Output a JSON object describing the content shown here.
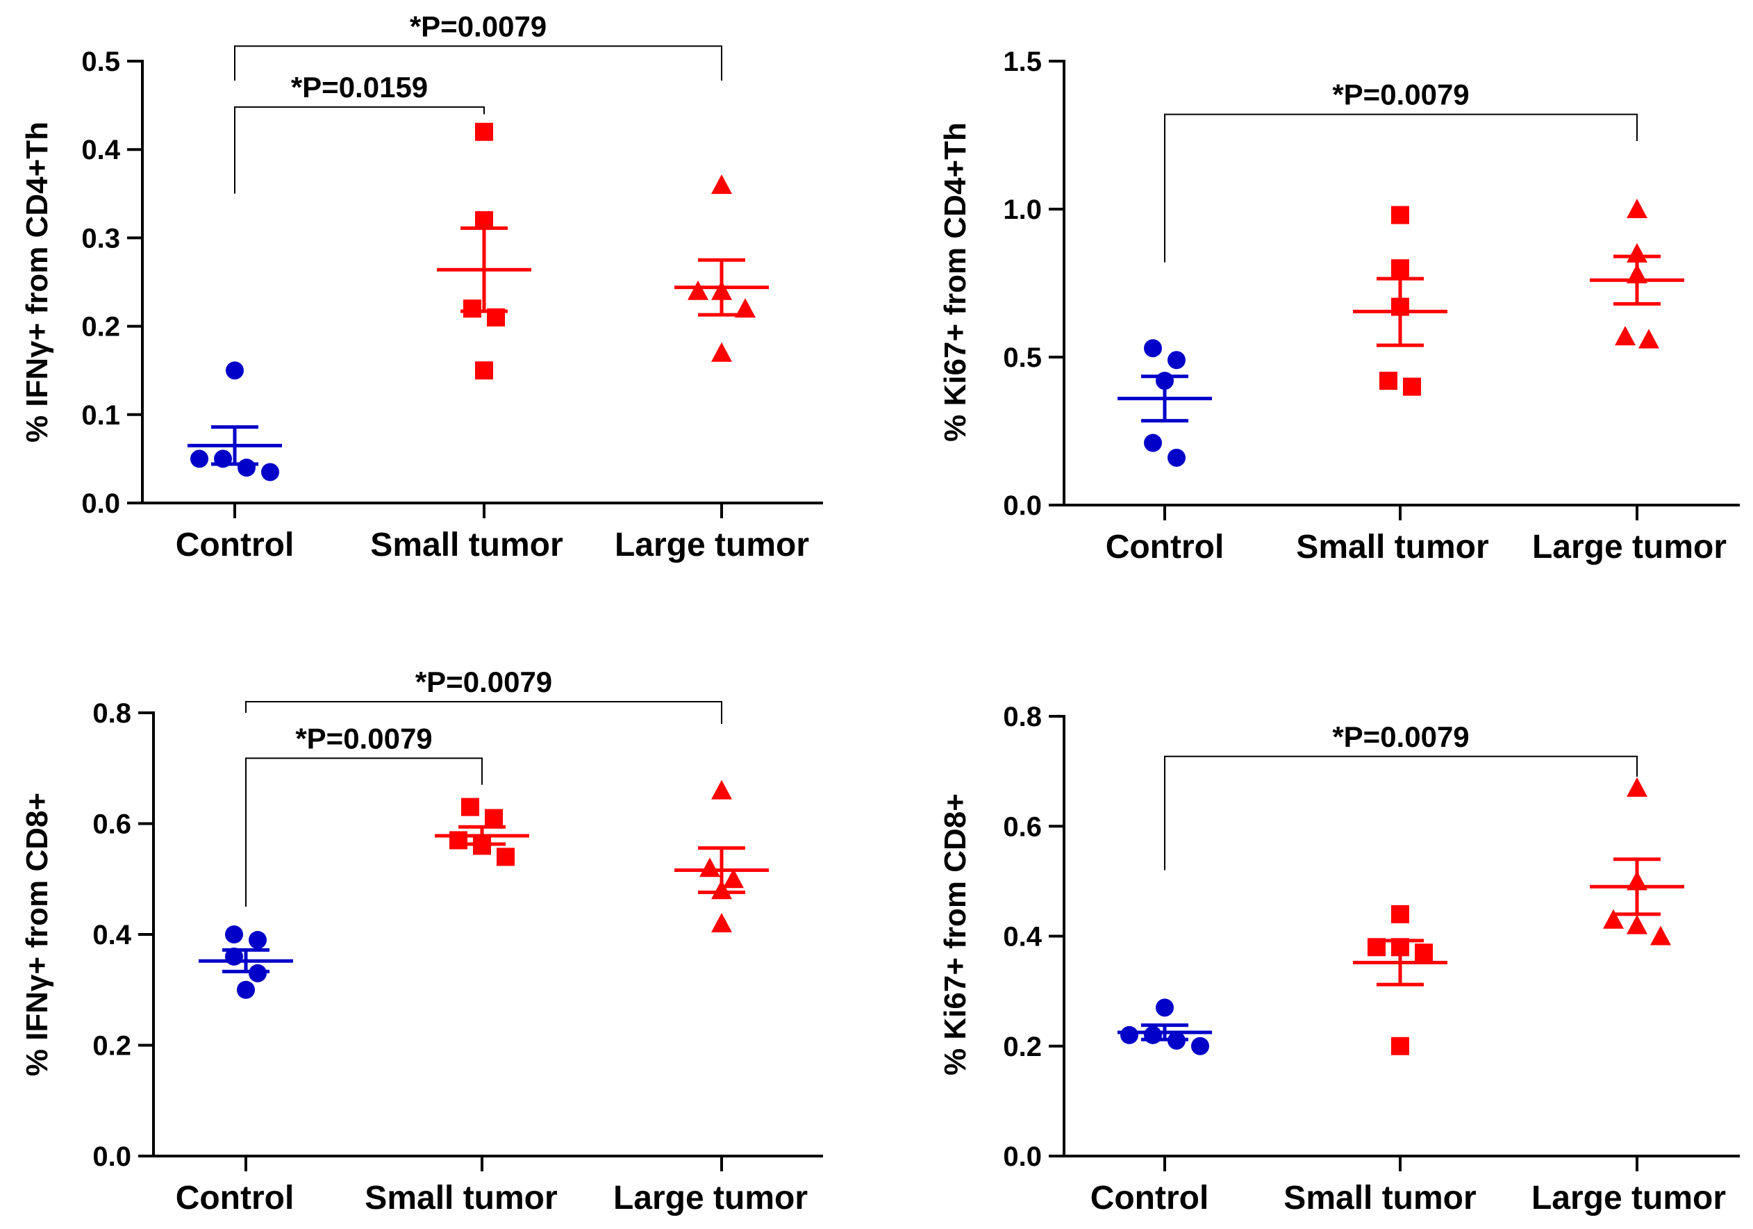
{
  "chart_data": [
    {
      "id": "ifng-cd4",
      "type": "scatter",
      "ylabel": "% IFNγ+ from CD4+Th",
      "ylim": [
        0,
        0.5
      ],
      "yticks": [
        0.0,
        0.1,
        0.2,
        0.3,
        0.4,
        0.5
      ],
      "ytick_labels": [
        "0.0",
        "0.1",
        "0.2",
        "0.3",
        "0.4",
        "0.5"
      ],
      "categories": [
        "Control",
        "Small tumor",
        "Large tumor"
      ],
      "groups": [
        {
          "name": "Control",
          "marker": "circle",
          "color": "#0000c8",
          "points": [
            0.15,
            0.05,
            0.05,
            0.04,
            0.035
          ],
          "mean": 0.065,
          "sem_low": 0.044,
          "sem_high": 0.086
        },
        {
          "name": "Small tumor",
          "marker": "square",
          "color": "#ff0000",
          "points": [
            0.42,
            0.32,
            0.22,
            0.21,
            0.15
          ],
          "mean": 0.264,
          "sem_low": 0.217,
          "sem_high": 0.311
        },
        {
          "name": "Large tumor",
          "marker": "triangle",
          "color": "#ff0000",
          "points": [
            0.36,
            0.24,
            0.24,
            0.22,
            0.17
          ],
          "mean": 0.244,
          "sem_low": 0.213,
          "sem_high": 0.275
        }
      ],
      "comparisons": [
        {
          "label": "*P=0.0159",
          "from": "Control",
          "to": "Small tumor",
          "level": 0.448,
          "left_drop": 0.35,
          "right_drop": 0.44
        },
        {
          "label": "*P=0.0079",
          "from": "Control",
          "to": "Large tumor",
          "level": 0.517,
          "left_drop": 0.478,
          "right_drop": 0.478
        }
      ]
    },
    {
      "id": "ki67-cd4",
      "type": "scatter",
      "ylabel": "% Ki67+ from CD4+Th",
      "ylim": [
        0,
        1.5
      ],
      "yticks": [
        0.0,
        0.5,
        1.0,
        1.5
      ],
      "ytick_labels": [
        "0.0",
        "0.5",
        "1.0",
        "1.5"
      ],
      "categories": [
        "Control",
        "Small tumor",
        "Large tumor"
      ],
      "groups": [
        {
          "name": "Control",
          "marker": "circle",
          "color": "#0000c8",
          "points": [
            0.53,
            0.49,
            0.42,
            0.21,
            0.16
          ],
          "mean": 0.36,
          "sem_low": 0.285,
          "sem_high": 0.435
        },
        {
          "name": "Small tumor",
          "marker": "square",
          "color": "#ff0000",
          "points": [
            0.98,
            0.8,
            0.67,
            0.42,
            0.4
          ],
          "mean": 0.654,
          "sem_low": 0.54,
          "sem_high": 0.765
        },
        {
          "name": "Large tumor",
          "marker": "triangle",
          "color": "#ff0000",
          "points": [
            1.0,
            0.85,
            0.78,
            0.57,
            0.56
          ],
          "mean": 0.76,
          "sem_low": 0.68,
          "sem_high": 0.84
        }
      ],
      "comparisons": [
        {
          "label": "*P=0.0079",
          "from": "Control",
          "to": "Large tumor",
          "level": 1.32,
          "left_drop": 0.82,
          "right_drop": 1.23
        }
      ]
    },
    {
      "id": "ifng-cd8",
      "type": "scatter",
      "ylabel": "% IFNγ+ from CD8+",
      "ylim": [
        0,
        0.8
      ],
      "yticks": [
        0.0,
        0.2,
        0.4,
        0.6,
        0.8
      ],
      "ytick_labels": [
        "0.0",
        "0.2",
        "0.4",
        "0.6",
        "0.8"
      ],
      "categories": [
        "Control",
        "Small tumor",
        "Large tumor"
      ],
      "groups": [
        {
          "name": "Control",
          "marker": "circle",
          "color": "#0000c8",
          "points": [
            0.4,
            0.39,
            0.36,
            0.33,
            0.3
          ],
          "mean": 0.352,
          "sem_low": 0.333,
          "sem_high": 0.372
        },
        {
          "name": "Small tumor",
          "marker": "square",
          "color": "#ff0000",
          "points": [
            0.63,
            0.61,
            0.57,
            0.56,
            0.54
          ],
          "mean": 0.578,
          "sem_low": 0.563,
          "sem_high": 0.594
        },
        {
          "name": "Large tumor",
          "marker": "triangle",
          "color": "#ff0000",
          "points": [
            0.66,
            0.52,
            0.5,
            0.48,
            0.42
          ],
          "mean": 0.516,
          "sem_low": 0.476,
          "sem_high": 0.556
        },
        {
          "name": "Control",
          "marker": "none",
          "color": "#000000",
          "points": [],
          "mean": null,
          "sem_low": null,
          "sem_high": null
        }
      ],
      "comparisons": [
        {
          "label": "*P=0.0079",
          "from": "Control",
          "to": "Small tumor",
          "level": 0.718,
          "left_drop": 0.45,
          "right_drop": 0.67
        },
        {
          "label": "*P=0.0079",
          "from": "Control",
          "to": "Large tumor",
          "level": 0.82,
          "left_drop": 0.8,
          "right_drop": 0.78
        }
      ]
    },
    {
      "id": "ki67-cd8",
      "type": "scatter",
      "ylabel": "% Ki67+ from CD8+",
      "ylim": [
        0,
        0.8
      ],
      "yticks": [
        0.0,
        0.2,
        0.4,
        0.6,
        0.8
      ],
      "ytick_labels": [
        "0.0",
        "0.2",
        "0.4",
        "0.6",
        "0.8"
      ],
      "categories": [
        "Control",
        "Small tumor",
        "Large tumor"
      ],
      "groups": [
        {
          "name": "Control",
          "marker": "circle",
          "color": "#0000c8",
          "points": [
            0.27,
            0.22,
            0.22,
            0.21,
            0.2
          ],
          "mean": 0.225,
          "sem_low": 0.212,
          "sem_high": 0.238
        },
        {
          "name": "Small tumor",
          "marker": "square",
          "color": "#ff0000",
          "points": [
            0.44,
            0.38,
            0.38,
            0.37,
            0.2
          ],
          "mean": 0.352,
          "sem_low": 0.312,
          "sem_high": 0.392
        },
        {
          "name": "Large tumor",
          "marker": "triangle",
          "color": "#ff0000",
          "points": [
            0.67,
            0.5,
            0.43,
            0.42,
            0.4
          ],
          "mean": 0.49,
          "sem_low": 0.44,
          "sem_high": 0.54
        }
      ],
      "comparisons": [
        {
          "label": "*P=0.0079",
          "from": "Control",
          "to": "Large tumor",
          "level": 0.727,
          "left_drop": 0.52,
          "right_drop": 0.69
        }
      ]
    }
  ]
}
